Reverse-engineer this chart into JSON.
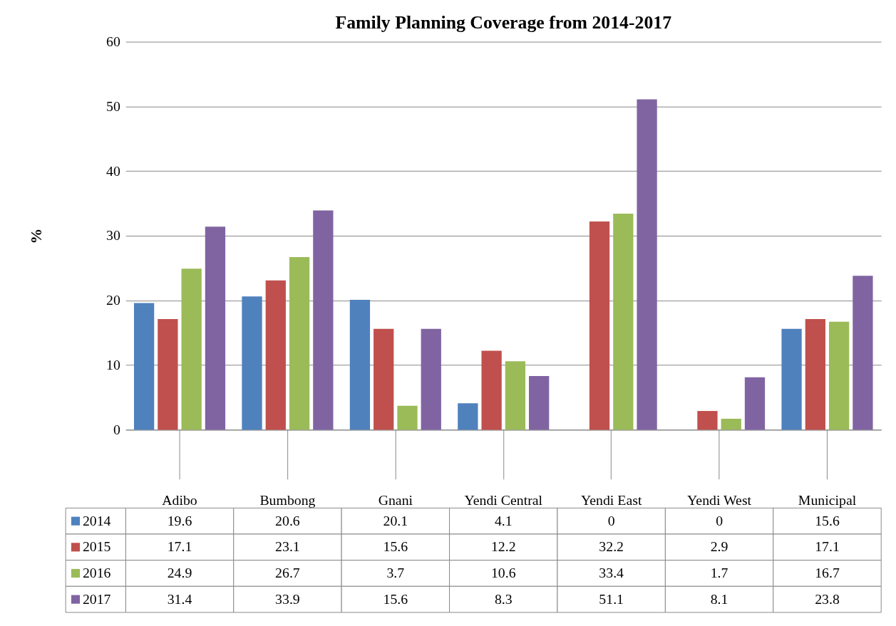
{
  "chart_data": {
    "type": "bar",
    "title": "Family Planning Coverage from 2014-2017",
    "ylabel": "%",
    "categories": [
      "Adibo",
      "Bumbong",
      "Gnani",
      "Yendi Central",
      "Yendi East",
      "Yendi West",
      "Municipal"
    ],
    "series": [
      {
        "name": "2014",
        "color": "#4f81bd",
        "values": [
          19.6,
          20.6,
          20.1,
          4.1,
          0,
          0,
          15.6
        ]
      },
      {
        "name": "2015",
        "color": "#c0504d",
        "values": [
          17.1,
          23.1,
          15.6,
          12.2,
          32.2,
          2.9,
          17.1
        ]
      },
      {
        "name": "2016",
        "color": "#9bbb59",
        "values": [
          24.9,
          26.7,
          3.7,
          10.6,
          33.4,
          1.7,
          16.7
        ]
      },
      {
        "name": "2017",
        "color": "#8064a2",
        "values": [
          31.4,
          33.9,
          15.6,
          8.3,
          51.1,
          8.1,
          23.8
        ]
      }
    ],
    "ylim": [
      0,
      60
    ],
    "yticks": [
      0,
      10,
      20,
      30,
      40,
      50,
      60
    ],
    "grid": "y",
    "legend": "bottom",
    "data_labels": true
  }
}
